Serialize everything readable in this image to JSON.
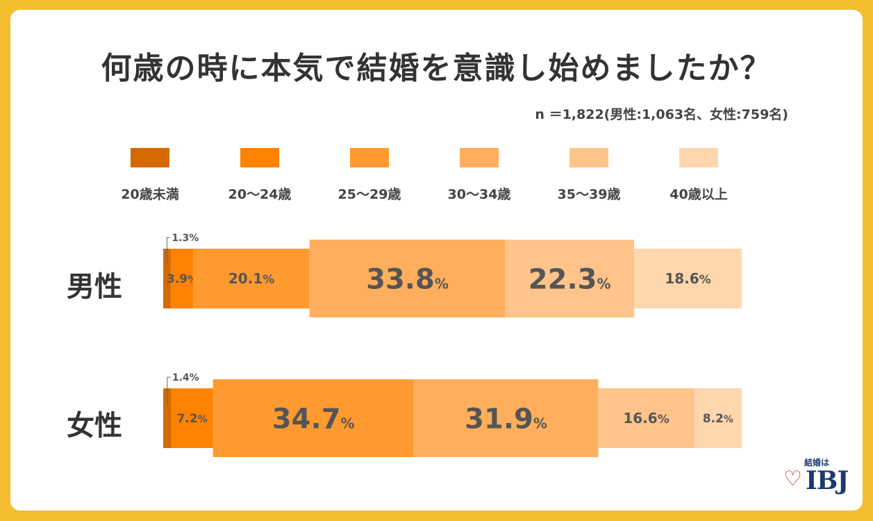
{
  "title": "何歳の時に本気で結婚を意識し始めましたか？",
  "sample_note": "n ＝1,822(男性:1,063名、女性:759名)",
  "logo": {
    "tagline": "結婚は",
    "brand": "IBJ",
    "heart_icon": "heart-icon"
  },
  "colors": {
    "background": "#f3bd2f",
    "categories": [
      "#d46a00",
      "#ff8200",
      "#ff9a30",
      "#ffaf5c",
      "#ffc48a",
      "#ffd6ad"
    ],
    "value_text": "#555555"
  },
  "chart_data": {
    "type": "bar",
    "orientation": "horizontal",
    "stacked": true,
    "categories": [
      "20歳未満",
      "20〜24歳",
      "25〜29歳",
      "30〜34歳",
      "35〜39歳",
      "40歳以上"
    ],
    "series": [
      {
        "name": "男性",
        "values": [
          1.3,
          3.9,
          20.1,
          33.8,
          22.3,
          18.6
        ]
      },
      {
        "name": "女性",
        "values": [
          1.4,
          7.2,
          34.7,
          31.9,
          16.6,
          8.2
        ]
      }
    ],
    "unit": "%",
    "legend_position": "top",
    "highlight": [
      [
        3,
        4
      ],
      [
        2,
        3
      ]
    ]
  }
}
